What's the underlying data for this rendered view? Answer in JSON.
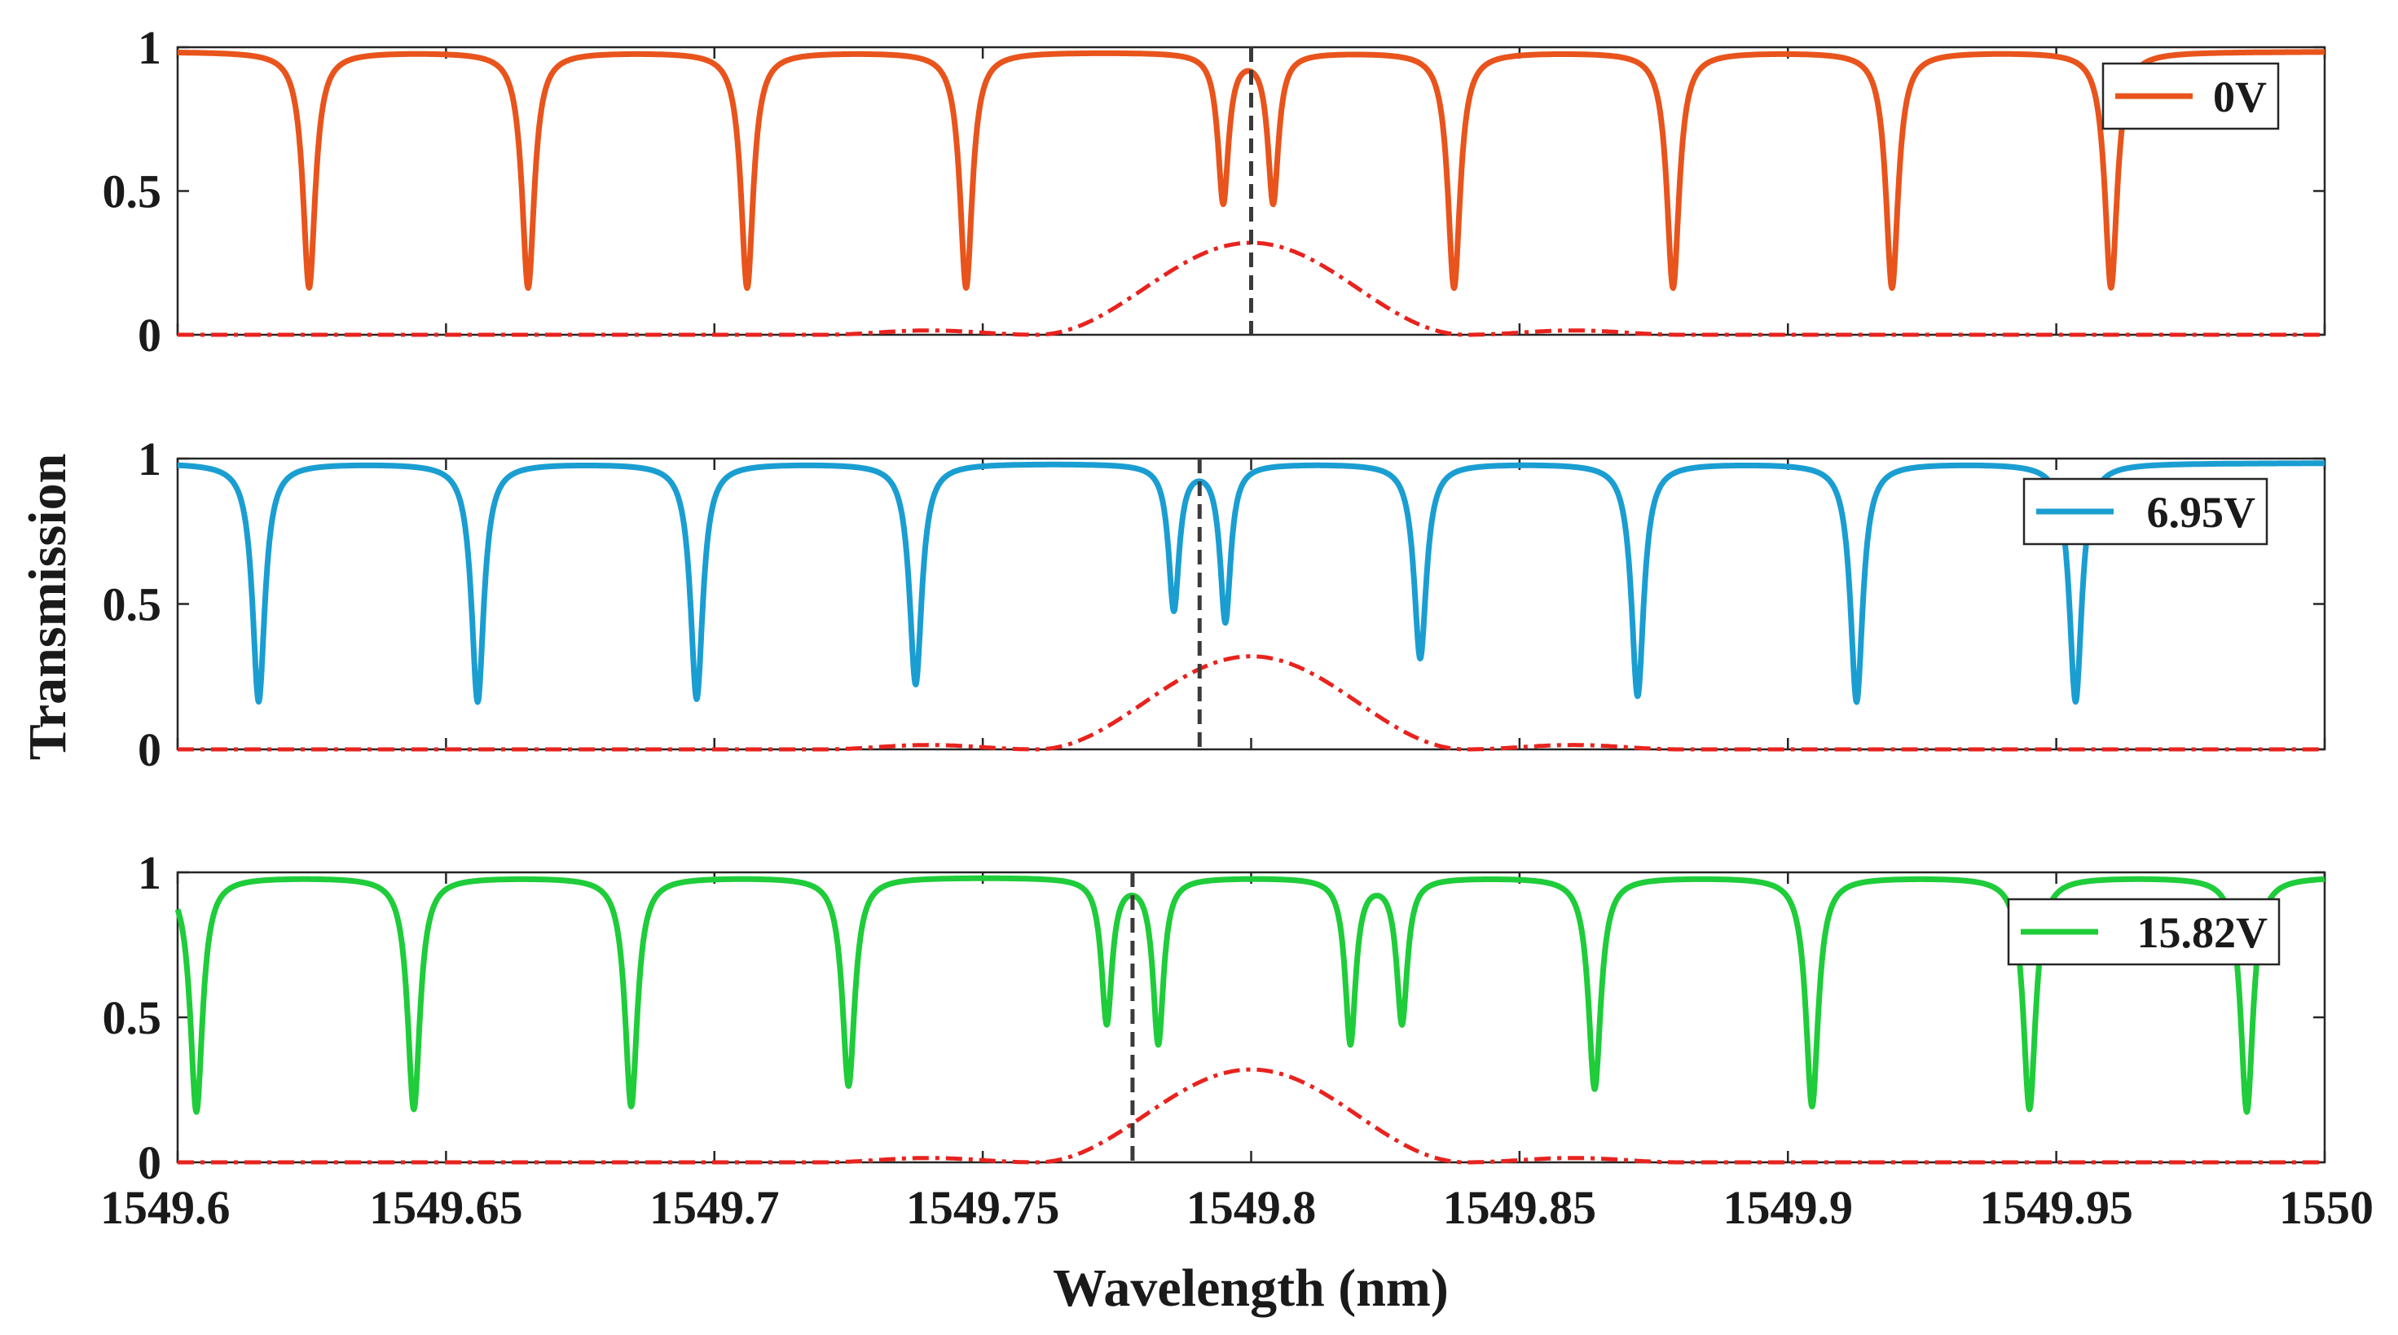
{
  "chart_data": {
    "type": "line",
    "xlabel": "Wavelength (nm)",
    "ylabel": "Transmission",
    "xlim": [
      1549.6,
      1550
    ],
    "xticks": [
      "1549.6",
      "1549.65",
      "1549.7",
      "1549.75",
      "1549.8",
      "1549.85",
      "1549.9",
      "1549.95",
      "1550"
    ],
    "xtick_values": [
      1549.6,
      1549.65,
      1549.7,
      1549.75,
      1549.8,
      1549.85,
      1549.9,
      1549.95,
      1550.0
    ],
    "ylim": [
      0,
      1
    ],
    "yticks": [
      "0",
      "0.5",
      "1"
    ],
    "ytick_values": [
      0,
      0.5,
      1
    ],
    "grid": false,
    "reference_curve": {
      "description": "red dash-dot filter response",
      "center_nm": 1549.8,
      "peak": 0.32,
      "half_width_nm": 0.04,
      "sidelobe_peak": 0.015,
      "color": "#e8231e"
    },
    "panels": [
      {
        "legend": "0V",
        "legend_position": "top-right",
        "color": "#e8541c",
        "dashed_marker_nm": 1549.8,
        "dips": [
          {
            "x": 1549.6245,
            "depth": 0.82,
            "width": 0.0014
          },
          {
            "x": 1549.6653,
            "depth": 0.82,
            "width": 0.0014
          },
          {
            "x": 1549.7061,
            "depth": 0.82,
            "width": 0.0014
          },
          {
            "x": 1549.7469,
            "depth": 0.82,
            "width": 0.0014
          },
          {
            "x": 1549.7948,
            "depth": 0.52,
            "width": 0.0012
          },
          {
            "x": 1549.8041,
            "depth": 0.52,
            "width": 0.0012
          },
          {
            "x": 1549.8378,
            "depth": 0.82,
            "width": 0.0014
          },
          {
            "x": 1549.8786,
            "depth": 0.82,
            "width": 0.0014
          },
          {
            "x": 1549.9194,
            "depth": 0.82,
            "width": 0.0014
          },
          {
            "x": 1549.9602,
            "depth": 0.82,
            "width": 0.0014
          }
        ]
      },
      {
        "legend": "6.95V",
        "legend_position": "top-right",
        "color": "#1a9ed2",
        "dashed_marker_nm": 1549.7904,
        "dips": [
          {
            "x": 1549.6151,
            "depth": 0.82,
            "width": 0.0014
          },
          {
            "x": 1549.6559,
            "depth": 0.82,
            "width": 0.0014
          },
          {
            "x": 1549.6967,
            "depth": 0.81,
            "width": 0.0014
          },
          {
            "x": 1549.7375,
            "depth": 0.76,
            "width": 0.0014
          },
          {
            "x": 1549.7856,
            "depth": 0.5,
            "width": 0.0012
          },
          {
            "x": 1549.7952,
            "depth": 0.54,
            "width": 0.0012
          },
          {
            "x": 1549.8315,
            "depth": 0.67,
            "width": 0.0014
          },
          {
            "x": 1549.872,
            "depth": 0.8,
            "width": 0.0014
          },
          {
            "x": 1549.9128,
            "depth": 0.82,
            "width": 0.0014
          },
          {
            "x": 1549.9536,
            "depth": 0.82,
            "width": 0.0014
          }
        ]
      },
      {
        "legend": "15.82V",
        "legend_position": "top-right",
        "color": "#1fcc3a",
        "dashed_marker_nm": 1549.7779,
        "dips": [
          {
            "x": 1549.6035,
            "depth": 0.81,
            "width": 0.0014
          },
          {
            "x": 1549.644,
            "depth": 0.8,
            "width": 0.0014
          },
          {
            "x": 1549.6845,
            "depth": 0.79,
            "width": 0.0014
          },
          {
            "x": 1549.725,
            "depth": 0.72,
            "width": 0.0014
          },
          {
            "x": 1549.7731,
            "depth": 0.5,
            "width": 0.0012
          },
          {
            "x": 1549.7827,
            "depth": 0.57,
            "width": 0.0012
          },
          {
            "x": 1549.8185,
            "depth": 0.57,
            "width": 0.0012
          },
          {
            "x": 1549.8281,
            "depth": 0.5,
            "width": 0.0012
          },
          {
            "x": 1549.864,
            "depth": 0.73,
            "width": 0.0014
          },
          {
            "x": 1549.9045,
            "depth": 0.79,
            "width": 0.0014
          },
          {
            "x": 1549.945,
            "depth": 0.8,
            "width": 0.0014
          },
          {
            "x": 1549.9855,
            "depth": 0.81,
            "width": 0.0014
          }
        ]
      }
    ]
  }
}
